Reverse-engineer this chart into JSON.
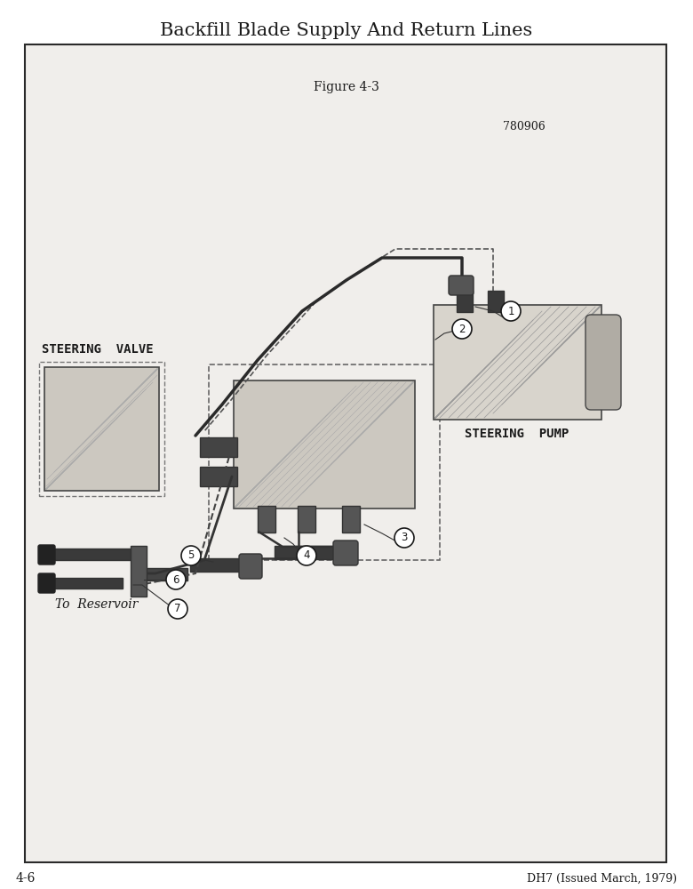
{
  "title": "Backfill Blade Supply And Return Lines",
  "figure_label": "Figure 4-3",
  "part_number": "780906",
  "page_number": "4-6",
  "footer_right": "DH7 (Issued March, 1979)",
  "background_color": "#f0eeeb",
  "page_bg": "#ffffff",
  "labels": {
    "steering_pump": "STEERING  PUMP",
    "steering_valve": "STEERING  VALVE",
    "to_reservoir": "To  Reservoir"
  },
  "callouts": [
    "1",
    "2",
    "3",
    "4",
    "5",
    "6",
    "7"
  ],
  "callout_positions_x": [
    575,
    520,
    455,
    345,
    215,
    198,
    200
  ],
  "callout_positions_y": [
    650,
    630,
    395,
    375,
    375,
    348,
    315
  ]
}
